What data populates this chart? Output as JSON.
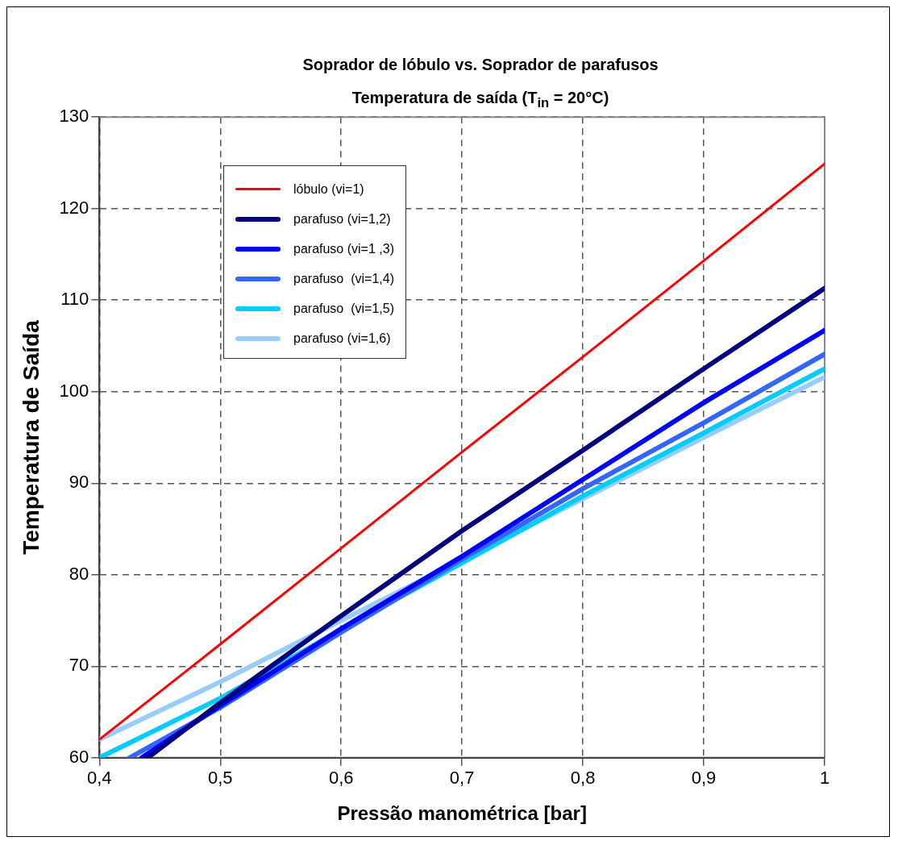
{
  "chart_data": {
    "type": "line",
    "title": "Soprador de lóbulo vs. Soprador de parafusos",
    "subtitle": "Temperatura de saída (T$_{in}$ = 20°C)",
    "xlabel": "Pressão manométrica [bar]",
    "ylabel": "Temperatura de Saída",
    "series": [
      {
        "name": "lóbulo (vi=1)",
        "color": "#ff0000",
        "x": [
          0.4,
          0.5,
          0.6,
          0.7,
          0.8,
          0.9,
          1
        ],
        "values": [
          62,
          72.4,
          82.9,
          93.4,
          103.8,
          114.3,
          124.9
        ]
      },
      {
        "name": "parafuso (vi=1,2)",
        "color": "#000080",
        "x": [
          0.44,
          0.5,
          0.6,
          0.7,
          0.8,
          0.9,
          1
        ],
        "values": [
          60,
          66,
          75.5,
          84.8,
          93.6,
          102.5,
          111.3
        ]
      },
      {
        "name": "parafuso (vi=1 ,3)",
        "color": "#0000ff",
        "x": [
          0.435,
          0.5,
          0.6,
          0.7,
          0.8,
          0.9,
          1
        ],
        "values": [
          60,
          65.7,
          74.1,
          82,
          90.4,
          98.8,
          106.7
        ]
      },
      {
        "name": "parafuso  (vi=1,4)",
        "color": "#3366ff",
        "x": [
          0.425,
          0.5,
          0.6,
          0.7,
          0.8,
          0.9,
          1
        ],
        "values": [
          60,
          65.5,
          73.7,
          81.7,
          89.4,
          96.6,
          104.1
        ]
      },
      {
        "name": "parafuso  (vi=1,5)",
        "color": "#00ccff",
        "x": [
          0.4,
          0.5,
          0.6,
          0.7,
          0.8,
          0.9,
          1
        ],
        "values": [
          60,
          66.5,
          74,
          81.3,
          88.6,
          95.5,
          102.5
        ]
      },
      {
        "name": "parafuso (vi=1,6)",
        "color": "#99ccff",
        "x": [
          0.4,
          0.5,
          0.6,
          0.7,
          0.8,
          0.9,
          1
        ],
        "values": [
          62,
          68.3,
          75,
          81.6,
          88.3,
          95,
          101.6
        ]
      }
    ],
    "xlim": [
      0.4,
      1
    ],
    "xticks": [
      {
        "value": 0.4,
        "label": "0,4"
      },
      {
        "value": 0.5,
        "label": "0,5"
      },
      {
        "value": 0.6,
        "label": "0,6"
      },
      {
        "value": 0.7,
        "label": "0,7"
      },
      {
        "value": 0.8,
        "label": "0,8"
      },
      {
        "value": 0.9,
        "label": "0,9"
      },
      1
    ],
    "ylim": [
      60,
      130
    ],
    "yticks": [
      60,
      70,
      80,
      90,
      100,
      110,
      120,
      130
    ],
    "grid": true,
    "legend": "top left",
    "marker": "none",
    "line_style": "solid"
  }
}
